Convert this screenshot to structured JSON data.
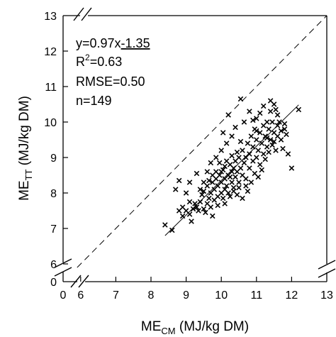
{
  "chart_data": {
    "type": "scatter",
    "xlabel": {
      "main": "ME",
      "sub": "CM",
      "rest": " (MJ/kg DM)"
    },
    "ylabel": {
      "main": "ME",
      "sub": "TT",
      "rest": " (MJ/kg DM)"
    },
    "x_ticks": [
      "0",
      "6",
      "7",
      "8",
      "9",
      "10",
      "11",
      "12",
      "13"
    ],
    "y_ticks": [
      "0",
      "6",
      "7",
      "8",
      "9",
      "10",
      "11",
      "12",
      "13"
    ],
    "xlim": [
      5.5,
      13
    ],
    "ylim": [
      5.5,
      13
    ],
    "axis_break": true,
    "grid": false,
    "annotations": {
      "equation_prefix": "y=0.97x",
      "equation_intercept": "-1.35",
      "r2_prefix": "R",
      "r2_sup": "2",
      "r2_value": "=0.63",
      "rmse": "RMSE=0.50",
      "n": "n=149"
    },
    "reference_line": {
      "style": "dashed",
      "slope": 1,
      "intercept": 0
    },
    "regression": {
      "slope": 0.97,
      "intercept": -1.35,
      "x_range": [
        8.4,
        12.2
      ]
    },
    "points": [
      [
        8.4,
        7.1
      ],
      [
        8.6,
        6.95
      ],
      [
        8.8,
        7.5
      ],
      [
        8.9,
        7.6
      ],
      [
        8.9,
        7.35
      ],
      [
        9.0,
        7.5
      ],
      [
        9.1,
        7.4
      ],
      [
        9.1,
        7.75
      ],
      [
        9.2,
        7.55
      ],
      [
        9.25,
        7.7
      ],
      [
        9.3,
        7.6
      ],
      [
        9.35,
        7.5
      ],
      [
        9.4,
        7.75
      ],
      [
        9.45,
        7.95
      ],
      [
        9.5,
        7.55
      ],
      [
        9.5,
        8.05
      ],
      [
        9.6,
        7.7
      ],
      [
        9.6,
        8.2
      ],
      [
        9.65,
        7.85
      ],
      [
        9.7,
        8.0
      ],
      [
        9.7,
        7.6
      ],
      [
        9.75,
        8.3
      ],
      [
        9.8,
        7.8
      ],
      [
        9.8,
        8.1
      ],
      [
        9.85,
        8.4
      ],
      [
        9.9,
        7.9
      ],
      [
        9.9,
        8.2
      ],
      [
        9.95,
        8.5
      ],
      [
        10.0,
        8.0
      ],
      [
        10.0,
        8.3
      ],
      [
        10.0,
        8.6
      ],
      [
        10.05,
        7.85
      ],
      [
        10.1,
        8.1
      ],
      [
        10.1,
        8.4
      ],
      [
        10.1,
        8.75
      ],
      [
        10.15,
        8.2
      ],
      [
        10.2,
        8.5
      ],
      [
        10.2,
        8.0
      ],
      [
        10.25,
        8.8
      ],
      [
        10.3,
        8.3
      ],
      [
        10.3,
        8.6
      ],
      [
        10.3,
        9.05
      ],
      [
        10.35,
        8.15
      ],
      [
        10.4,
        8.45
      ],
      [
        10.4,
        8.9
      ],
      [
        10.45,
        8.6
      ],
      [
        10.5,
        8.3
      ],
      [
        10.5,
        9.0
      ],
      [
        10.55,
        8.7
      ],
      [
        10.6,
        8.5
      ],
      [
        10.6,
        9.2
      ],
      [
        10.65,
        8.85
      ],
      [
        10.7,
        8.4
      ],
      [
        10.7,
        9.0
      ],
      [
        10.75,
        9.4
      ],
      [
        10.8,
        8.7
      ],
      [
        10.8,
        9.1
      ],
      [
        10.85,
        9.6
      ],
      [
        10.9,
        8.9
      ],
      [
        10.9,
        9.3
      ],
      [
        10.95,
        9.8
      ],
      [
        11.0,
        9.0
      ],
      [
        11.0,
        9.5
      ],
      [
        11.0,
        10.1
      ],
      [
        11.05,
        9.2
      ],
      [
        11.1,
        9.7
      ],
      [
        11.1,
        8.8
      ],
      [
        11.15,
        9.4
      ],
      [
        11.2,
        9.9
      ],
      [
        11.2,
        9.1
      ],
      [
        11.25,
        9.6
      ],
      [
        11.3,
        10.0
      ],
      [
        11.3,
        9.3
      ],
      [
        11.35,
        9.8
      ],
      [
        11.4,
        10.3
      ],
      [
        11.4,
        9.5
      ],
      [
        11.45,
        10.0
      ],
      [
        11.5,
        9.7
      ],
      [
        11.5,
        10.5
      ],
      [
        11.55,
        9.2
      ],
      [
        11.6,
        9.9
      ],
      [
        11.6,
        10.2
      ],
      [
        11.7,
        9.5
      ],
      [
        11.8,
        9.8
      ],
      [
        11.9,
        9.1
      ],
      [
        12.0,
        8.7
      ],
      [
        12.2,
        10.35
      ],
      [
        10.55,
        10.65
      ],
      [
        8.7,
        8.1
      ],
      [
        8.8,
        8.35
      ],
      [
        9.0,
        8.0
      ],
      [
        9.1,
        8.3
      ],
      [
        9.15,
        7.2
      ],
      [
        9.3,
        8.55
      ],
      [
        9.4,
        8.1
      ],
      [
        9.5,
        8.3
      ],
      [
        9.55,
        7.45
      ],
      [
        9.6,
        8.6
      ],
      [
        9.7,
        8.85
      ],
      [
        9.75,
        7.35
      ],
      [
        9.85,
        9.0
      ],
      [
        9.9,
        7.65
      ],
      [
        10.0,
        9.2
      ],
      [
        10.05,
        9.7
      ],
      [
        10.1,
        7.7
      ],
      [
        10.15,
        9.4
      ],
      [
        10.2,
        10.2
      ],
      [
        10.25,
        7.9
      ],
      [
        10.3,
        9.6
      ],
      [
        10.35,
        8.05
      ],
      [
        10.4,
        9.85
      ],
      [
        10.45,
        7.95
      ],
      [
        10.5,
        8.15
      ],
      [
        10.55,
        9.45
      ],
      [
        10.6,
        7.85
      ],
      [
        10.65,
        10.0
      ],
      [
        10.7,
        8.2
      ],
      [
        10.75,
        8.05
      ],
      [
        10.8,
        10.3
      ],
      [
        10.85,
        8.3
      ],
      [
        10.9,
        10.05
      ],
      [
        10.95,
        8.55
      ],
      [
        11.0,
        9.75
      ],
      [
        11.05,
        8.45
      ],
      [
        11.1,
        10.25
      ],
      [
        11.15,
        8.65
      ],
      [
        11.2,
        10.45
      ],
      [
        11.25,
        8.95
      ],
      [
        11.3,
        9.55
      ],
      [
        11.35,
        9.15
      ],
      [
        11.4,
        10.6
      ],
      [
        11.45,
        9.35
      ],
      [
        11.5,
        9.45
      ],
      [
        11.55,
        10.35
      ],
      [
        11.6,
        9.6
      ],
      [
        11.65,
        10.0
      ],
      [
        11.7,
        9.75
      ],
      [
        11.75,
        9.25
      ],
      [
        11.8,
        9.95
      ],
      [
        11.85,
        9.65
      ],
      [
        10.45,
        9.15
      ],
      [
        10.35,
        8.7
      ],
      [
        10.25,
        8.45
      ],
      [
        10.15,
        8.9
      ],
      [
        10.05,
        8.65
      ],
      [
        9.95,
        8.85
      ],
      [
        9.85,
        8.6
      ],
      [
        9.75,
        8.5
      ],
      [
        9.65,
        8.35
      ]
    ]
  }
}
